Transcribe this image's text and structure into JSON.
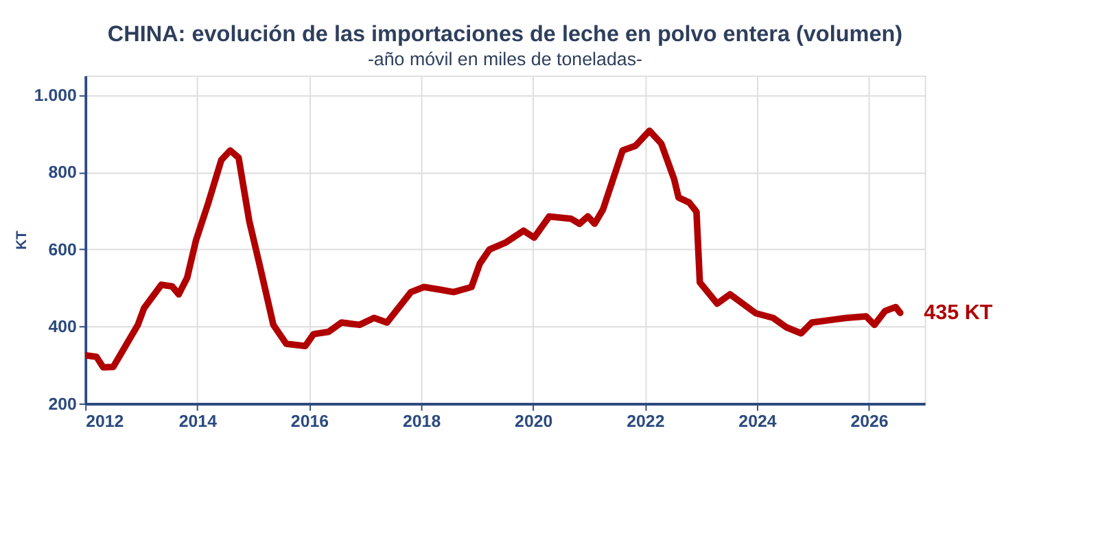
{
  "chart_data": {
    "type": "line",
    "title": "CHINA: evolución de las importaciones de leche en polvo entera (volumen)",
    "subtitle": "-año móvil en miles de toneladas-",
    "ylabel": "KT",
    "x": [
      2012.0,
      2012.2,
      2012.32,
      2012.5,
      2012.67,
      2012.94,
      2013.05,
      2013.36,
      2013.55,
      2013.67,
      2013.82,
      2013.98,
      2014.2,
      2014.43,
      2014.59,
      2014.74,
      2014.93,
      2015.13,
      2015.36,
      2015.59,
      2015.93,
      2016.08,
      2016.35,
      2016.58,
      2016.9,
      2017.16,
      2017.39,
      2017.82,
      2018.05,
      2018.35,
      2018.58,
      2018.9,
      2019.05,
      2019.22,
      2019.52,
      2019.83,
      2020.02,
      2020.29,
      2020.68,
      2020.83,
      2020.98,
      2021.1,
      2021.25,
      2021.6,
      2021.83,
      2022.08,
      2022.29,
      2022.52,
      2022.6,
      2022.79,
      2022.92,
      2022.98,
      2023.29,
      2023.52,
      2023.98,
      2024.29,
      2024.52,
      2024.79,
      2024.98,
      2025.29,
      2025.6,
      2025.95,
      2026.1,
      2026.29,
      2026.48,
      2026.56
    ],
    "series": [
      {
        "color": "#b00000",
        "values": [
          325,
          321,
          294,
          295,
          337,
          404,
          447,
          508,
          504,
          483,
          526,
          624,
          721,
          831,
          856,
          837,
          673,
          550,
          404,
          355,
          349,
          380,
          386,
          410,
          404,
          422,
          410,
          489,
          502,
          495,
          489,
          502,
          563,
          599,
          618,
          648,
          630,
          685,
          679,
          666,
          685,
          666,
          703,
          856,
          868,
          907,
          874,
          782,
          734,
          721,
          697,
          514,
          459,
          483,
          434,
          422,
          398,
          382,
          410,
          416,
          422,
          426,
          404,
          440,
          450,
          435
        ]
      }
    ],
    "annotations": [
      {
        "text": "435 KT",
        "x": 2026.56,
        "y": 435
      }
    ],
    "xlim": [
      2012,
      2027
    ],
    "xticks": [
      2012,
      2014,
      2016,
      2018,
      2020,
      2022,
      2024,
      2026
    ],
    "ylim": [
      200,
      1050
    ],
    "yticks": [
      200,
      400,
      600,
      800,
      {
        "value": 1000,
        "label": "1.000"
      }
    ],
    "grid": true,
    "marker": "none",
    "line_style": "solid"
  }
}
